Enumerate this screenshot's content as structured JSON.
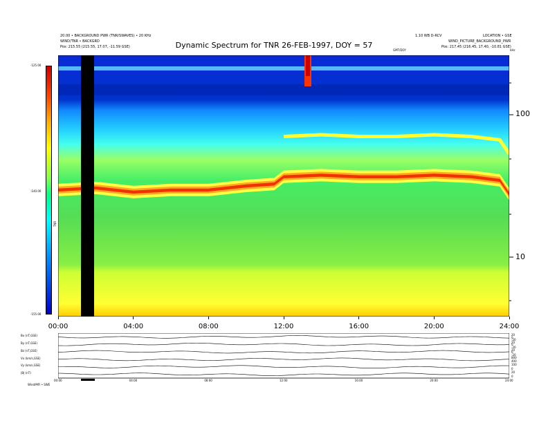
{
  "header": {
    "title": "Dynamic Spectrum for TNR 26-FEB-1997, DOY = 57",
    "left_line1": "20.00 • BACKGROUND PWR (TNR/SWAVES) • 20 KHz",
    "left_line2": "WIND/TNR • BACKGRD",
    "left_line3": "Pos:   215.55 (215.55, 17.07, -11.59 GSE)",
    "right_line1": "1.10 WB D-RCV",
    "right_line2": "LOCATION • GSE",
    "right_line3": "WIND_PICTURE_BACKGROUND_PWR",
    "right_line4": "Pos:   217.45 (216.45, 17.40, -10.81 GSE)",
    "center_small": "GMT/DOY"
  },
  "colorbar": {
    "label": "TNR",
    "ticks": [
      "-125.00",
      "-140.00",
      "-155.00"
    ]
  },
  "right_axis": {
    "unit": "kHz",
    "ticks": [
      "100",
      "10"
    ]
  },
  "xaxis_ticks": [
    "00:00",
    "04:00",
    "08:00",
    "12:00",
    "16:00",
    "20:00",
    "24:00"
  ],
  "panels": [
    {
      "label": "Bx (nT,GSE)",
      "ticks": [
        "20",
        "0",
        "-20"
      ]
    },
    {
      "label": "By (nT,GSE)",
      "ticks": [
        "20",
        "0",
        "-20"
      ]
    },
    {
      "label": "Bz (nT,GSE)",
      "ticks": [
        "20",
        "0",
        "-20"
      ]
    },
    {
      "label": "Vx (km/s,GSE)",
      "ticks": [
        "800",
        "400"
      ]
    },
    {
      "label": "Vy (km/s,GSE)",
      "ticks": [
        "100",
        "0"
      ]
    },
    {
      "label": "|B| (nT)",
      "ticks": [
        "20",
        "0"
      ]
    }
  ],
  "bottom_ticks": [
    "00:00",
    "04:00",
    "08:00",
    "12:00",
    "16:00",
    "20:00",
    "24:00"
  ],
  "bottom_left": "Wind/MFI • SWE",
  "chart_data": {
    "type": "heatmap",
    "title": "Dynamic Spectrum for TNR 26-FEB-1997, DOY = 57",
    "x_range": [
      "00:00",
      "24:00"
    ],
    "y_range_khz": [
      4,
      256
    ],
    "y_scale": "log",
    "color_range": [
      -155,
      -125
    ],
    "data_gap": [
      "01:20",
      "01:55"
    ],
    "emission_band_khz": [
      {
        "t": "00:00",
        "f": 30
      },
      {
        "t": "02:00",
        "f": 31
      },
      {
        "t": "04:00",
        "f": 29
      },
      {
        "t": "06:00",
        "f": 30
      },
      {
        "t": "08:00",
        "f": 30
      },
      {
        "t": "10:00",
        "f": 32
      },
      {
        "t": "11:30",
        "f": 33
      },
      {
        "t": "12:00",
        "f": 37
      },
      {
        "t": "14:00",
        "f": 38
      },
      {
        "t": "16:00",
        "f": 37
      },
      {
        "t": "18:00",
        "f": 37
      },
      {
        "t": "20:00",
        "f": 38
      },
      {
        "t": "22:00",
        "f": 37
      },
      {
        "t": "23:30",
        "f": 35
      },
      {
        "t": "24:00",
        "f": 28
      }
    ]
  }
}
